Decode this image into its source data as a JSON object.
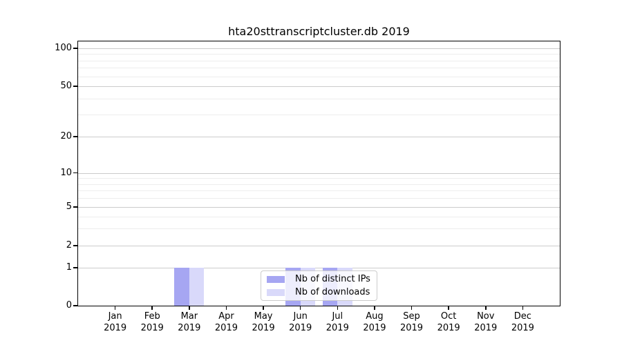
{
  "title": "hta20sttranscriptcluster.db 2019",
  "legend": {
    "items": [
      {
        "label": "Nb of distinct IPs",
        "color": "#a6a6f2"
      },
      {
        "label": "Nb of downloads",
        "color": "#d9d9fa"
      }
    ]
  },
  "chart_data": {
    "type": "bar",
    "title": "hta20sttranscriptcluster.db 2019",
    "categories": [
      "Jan 2019",
      "Feb 2019",
      "Mar 2019",
      "Apr 2019",
      "May 2019",
      "Jun 2019",
      "Jul 2019",
      "Aug 2019",
      "Sep 2019",
      "Oct 2019",
      "Nov 2019",
      "Dec 2019"
    ],
    "series": [
      {
        "name": "Nb of distinct IPs",
        "color": "#a6a6f2",
        "values": [
          0,
          0,
          1,
          0,
          0,
          1,
          1,
          0,
          0,
          0,
          0,
          0
        ]
      },
      {
        "name": "Nb of downloads",
        "color": "#d9d9fa",
        "values": [
          0,
          0,
          1,
          0,
          0,
          1,
          1,
          0,
          0,
          0,
          0,
          0
        ]
      }
    ],
    "yticks": [
      0,
      1,
      2,
      5,
      10,
      20,
      50,
      100
    ],
    "ylim": [
      0,
      100
    ],
    "yscale": "log-like with zero baseline",
    "xlabel": "",
    "ylabel": "",
    "grid": "horizontal major and minor",
    "legend_position": "lower center inside plot"
  }
}
